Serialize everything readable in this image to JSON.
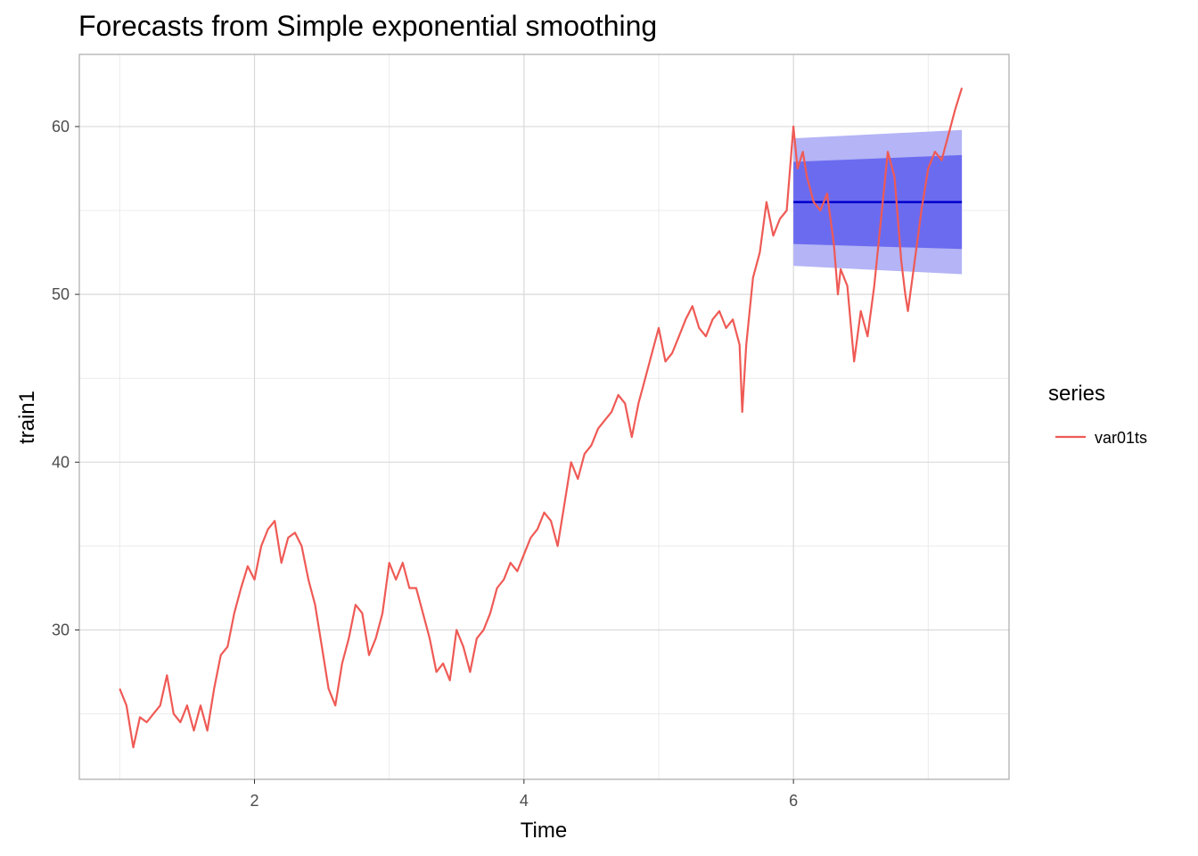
{
  "chart_data": {
    "type": "line",
    "title": "Forecasts from Simple exponential smoothing",
    "xlabel": "Time",
    "ylabel": "train1",
    "xlim": [
      0.7,
      7.6
    ],
    "ylim": [
      21.1,
      64.3
    ],
    "x_ticks": [
      2,
      4,
      6
    ],
    "x_tick_labels": [
      "2",
      "4",
      "6"
    ],
    "y_ticks": [
      30,
      40,
      50,
      60
    ],
    "y_tick_labels": [
      "30",
      "40",
      "50",
      "60"
    ],
    "grid": true,
    "legend": {
      "title": "series",
      "position": "right",
      "entries": [
        "var01ts"
      ]
    },
    "colors": {
      "series": "#ef5a55",
      "forecast_line": "#0000cc",
      "band80": "#6b6bf0",
      "band95": "#b4b4f6",
      "grid_major": "#d9d9d9",
      "grid_minor": "#ebebeb",
      "panel_border": "#aaaaaa"
    },
    "series": [
      {
        "name": "var01ts",
        "x": [
          1.0,
          1.05,
          1.1,
          1.15,
          1.2,
          1.25,
          1.3,
          1.35,
          1.4,
          1.45,
          1.5,
          1.55,
          1.6,
          1.65,
          1.7,
          1.75,
          1.8,
          1.85,
          1.9,
          1.95,
          2.0,
          2.05,
          2.1,
          2.15,
          2.2,
          2.25,
          2.3,
          2.35,
          2.4,
          2.45,
          2.5,
          2.55,
          2.6,
          2.65,
          2.7,
          2.75,
          2.8,
          2.85,
          2.9,
          2.95,
          3.0,
          3.05,
          3.1,
          3.15,
          3.2,
          3.25,
          3.3,
          3.35,
          3.4,
          3.45,
          3.5,
          3.55,
          3.6,
          3.65,
          3.7,
          3.75,
          3.8,
          3.85,
          3.9,
          3.95,
          4.0,
          4.05,
          4.1,
          4.15,
          4.2,
          4.25,
          4.3,
          4.35,
          4.4,
          4.45,
          4.5,
          4.55,
          4.6,
          4.65,
          4.7,
          4.75,
          4.8,
          4.85,
          4.9,
          4.95,
          5.0,
          5.05,
          5.1,
          5.15,
          5.2,
          5.25,
          5.3,
          5.35,
          5.4,
          5.45,
          5.5,
          5.55,
          5.6,
          5.62,
          5.65,
          5.7,
          5.75,
          5.8,
          5.85,
          5.9,
          5.95,
          6.0,
          6.03,
          6.07,
          6.1,
          6.15,
          6.2,
          6.25,
          6.3,
          6.33,
          6.35,
          6.4,
          6.45,
          6.5,
          6.55,
          6.6,
          6.65,
          6.7,
          6.75,
          6.8,
          6.83,
          6.85,
          6.9,
          6.95,
          7.0,
          7.05,
          7.1,
          7.15,
          7.2,
          7.25
        ],
        "y": [
          26.5,
          25.5,
          23.0,
          24.8,
          24.5,
          25.0,
          25.5,
          27.3,
          25.0,
          24.5,
          25.5,
          24.0,
          25.5,
          24.0,
          26.5,
          28.5,
          29.0,
          31.0,
          32.5,
          33.8,
          33.0,
          35.0,
          36.0,
          36.5,
          34.0,
          35.5,
          35.8,
          35.0,
          33.0,
          31.5,
          29.0,
          26.5,
          25.5,
          28.0,
          29.5,
          31.5,
          31.0,
          28.5,
          29.5,
          31.0,
          34.0,
          33.0,
          34.0,
          32.5,
          32.5,
          31.0,
          29.5,
          27.5,
          28.0,
          27.0,
          30.0,
          29.0,
          27.5,
          29.5,
          30.0,
          31.0,
          32.5,
          33.0,
          34.0,
          33.5,
          34.5,
          35.5,
          36.0,
          37.0,
          36.5,
          35.0,
          37.5,
          40.0,
          39.0,
          40.5,
          41.0,
          42.0,
          42.5,
          43.0,
          44.0,
          43.5,
          41.5,
          43.5,
          45.0,
          46.5,
          48.0,
          46.0,
          46.5,
          47.5,
          48.5,
          49.3,
          48.0,
          47.5,
          48.5,
          49.0,
          48.0,
          48.5,
          47.0,
          43.0,
          47.0,
          51.0,
          52.5,
          55.5,
          53.5,
          54.5,
          55.0,
          60.0,
          57.5,
          58.5,
          57.0,
          55.5,
          55.0,
          56.0,
          53.0,
          50.0,
          51.5,
          50.5,
          46.0,
          49.0,
          47.5,
          50.5,
          54.5,
          58.5,
          57.0,
          52.0,
          50.0,
          49.0,
          52.0,
          55.0,
          57.5,
          58.5,
          58.0,
          59.5,
          61.0,
          62.3
        ]
      }
    ],
    "forecast": {
      "x": [
        6.0,
        7.25
      ],
      "point": [
        55.5,
        55.5
      ],
      "lo80": [
        53.0,
        52.7
      ],
      "hi80": [
        57.9,
        58.3
      ],
      "lo95": [
        51.7,
        51.2
      ],
      "hi95": [
        59.3,
        59.8
      ]
    }
  }
}
